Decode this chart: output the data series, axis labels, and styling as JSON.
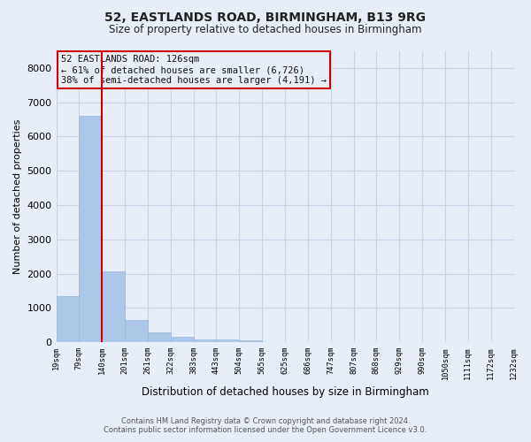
{
  "title": "52, EASTLANDS ROAD, BIRMINGHAM, B13 9RG",
  "subtitle": "Size of property relative to detached houses in Birmingham",
  "xlabel": "Distribution of detached houses by size in Birmingham",
  "ylabel": "Number of detached properties",
  "bin_labels": [
    "19sqm",
    "79sqm",
    "140sqm",
    "201sqm",
    "261sqm",
    "322sqm",
    "383sqm",
    "443sqm",
    "504sqm",
    "565sqm",
    "625sqm",
    "686sqm",
    "747sqm",
    "807sqm",
    "868sqm",
    "929sqm",
    "990sqm",
    "1050sqm",
    "1111sqm",
    "1172sqm",
    "1232sqm"
  ],
  "bin_values": [
    1330,
    6600,
    2070,
    640,
    295,
    150,
    90,
    80,
    60,
    0,
    0,
    0,
    0,
    0,
    0,
    0,
    0,
    0,
    0,
    0
  ],
  "bar_color": "#aec6e8",
  "bar_edge_color": "#9ab8d8",
  "vline_color": "#cc0000",
  "annotation_text": "52 EASTLANDS ROAD: 126sqm\n← 61% of detached houses are smaller (6,726)\n38% of semi-detached houses are larger (4,191) →",
  "annotation_box_edge_color": "#cc0000",
  "ylim": [
    0,
    8500
  ],
  "yticks": [
    0,
    1000,
    2000,
    3000,
    4000,
    5000,
    6000,
    7000,
    8000
  ],
  "grid_color": "#c8d4e8",
  "background_color": "#e8eef8",
  "footer_line1": "Contains HM Land Registry data © Crown copyright and database right 2024.",
  "footer_line2": "Contains public sector information licensed under the Open Government Licence v3.0."
}
